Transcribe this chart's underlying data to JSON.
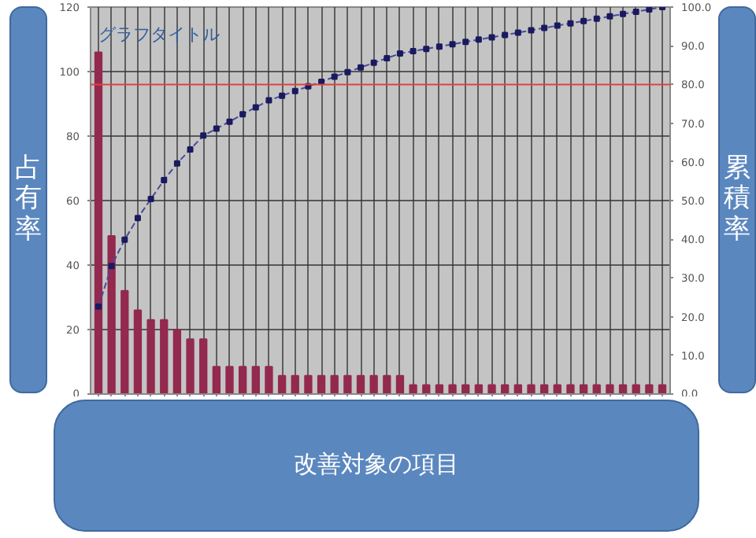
{
  "chart_data": {
    "type": "bar",
    "title": "グラフタイトル",
    "xlabel": "改善対象の項目",
    "ylabel": "占有率",
    "y2label": "累積率",
    "categories": [
      null,
      null,
      null,
      null,
      null,
      null,
      null,
      null,
      null,
      null,
      null,
      null,
      null,
      null,
      null,
      null,
      null,
      null,
      null,
      null,
      null,
      null,
      null,
      null,
      null,
      null,
      null,
      null,
      null,
      null,
      null,
      null,
      null,
      null,
      null,
      null,
      null,
      null,
      null,
      null,
      null,
      null,
      null,
      null
    ],
    "series": [
      {
        "color": "#93294f",
        "values": [
          106,
          49,
          32,
          26,
          23,
          23,
          20,
          17,
          17,
          8.5,
          8.5,
          8.5,
          8.5,
          8.5,
          5.7,
          5.7,
          5.7,
          5.7,
          5.7,
          5.7,
          5.7,
          5.7,
          5.7,
          5.7,
          2.8,
          2.8,
          2.8,
          2.8,
          2.8,
          2.8,
          2.8,
          2.8,
          2.8,
          2.8,
          2.8,
          2.8,
          2.8,
          2.8,
          2.8,
          2.8,
          2.8,
          2.8,
          2.8,
          2.8
        ]
      },
      {
        "type": "line",
        "axis": "y2",
        "color": "#4a4a9a",
        "marker": "square",
        "line_style": "dashed",
        "values": [
          22.6,
          33.1,
          39.9,
          45.5,
          50.4,
          55.3,
          59.6,
          63.2,
          66.8,
          68.6,
          70.4,
          72.3,
          74.1,
          75.9,
          77.1,
          78.3,
          79.5,
          80.7,
          82.0,
          83.2,
          84.4,
          85.6,
          86.8,
          88.0,
          88.6,
          89.2,
          89.8,
          90.4,
          91.0,
          91.6,
          92.2,
          92.8,
          93.4,
          94.0,
          94.6,
          95.2,
          95.8,
          96.4,
          97.0,
          97.6,
          98.2,
          98.8,
          99.4,
          100
        ]
      }
    ],
    "ylim": [
      0,
      120
    ],
    "yticks": [
      0,
      20,
      40,
      60,
      80,
      100,
      120
    ],
    "y2lim": [
      0,
      100
    ],
    "y2ticks": [
      {
        "value": 0,
        "label": "0.0"
      },
      {
        "value": 10,
        "label": "10.0"
      },
      {
        "value": 20,
        "label": "20.0"
      },
      {
        "value": 30,
        "label": "30.0"
      },
      {
        "value": 40,
        "label": "40.0"
      },
      {
        "value": 50,
        "label": "50.0"
      },
      {
        "value": 60,
        "label": "60.0"
      },
      {
        "value": 70,
        "label": "70.0"
      },
      {
        "value": 80,
        "label": "80.0"
      },
      {
        "value": 90,
        "label": "90.0"
      },
      {
        "value": 100,
        "label": "100.0"
      }
    ],
    "ref_lines": [
      {
        "axis": "y2",
        "value": 80,
        "color": "#e04040"
      }
    ],
    "grid": true
  }
}
